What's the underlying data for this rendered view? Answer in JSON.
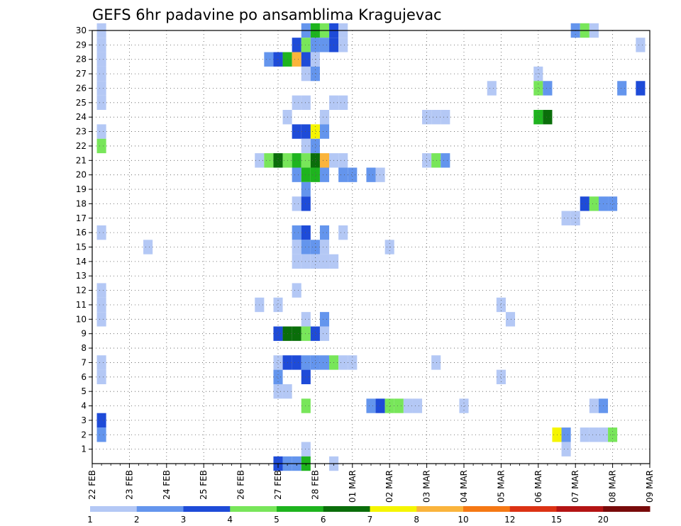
{
  "chart_data": {
    "type": "heatmap",
    "title": "GEFS 6hr padavine po ansamblima Kragujevac",
    "xlabel": "",
    "ylabel": "",
    "x_range": [
      "22 FEB 00Z",
      "09 MAR 00Z"
    ],
    "x_step_hours": 6,
    "x_ticks": [
      "22 FEB",
      "23 FEB",
      "24 FEB",
      "25 FEB",
      "26 FEB",
      "27 FEB",
      "28 FEB",
      "01 MAR",
      "02 MAR",
      "03 MAR",
      "04 MAR",
      "05 MAR",
      "06 MAR",
      "07 MAR",
      "08 MAR",
      "09 MAR"
    ],
    "y_ticks": [
      1,
      2,
      3,
      4,
      5,
      6,
      7,
      8,
      9,
      10,
      11,
      12,
      13,
      14,
      15,
      16,
      17,
      18,
      19,
      20,
      21,
      22,
      23,
      24,
      25,
      26,
      27,
      28,
      29,
      30
    ],
    "y_range": [
      0,
      30
    ],
    "grid": true,
    "colorbar": {
      "bounds": [
        1,
        2,
        3,
        4,
        5,
        6,
        7,
        8,
        10,
        12,
        15,
        20
      ],
      "labels": [
        "1",
        "2",
        "3",
        "4",
        "5",
        "6",
        "7",
        "8",
        "10",
        "12",
        "15",
        "20"
      ],
      "colors": [
        "#b4c8f5",
        "#6495ed",
        "#1e4bd8",
        "#78e65a",
        "#1eb41e",
        "#0a6e0a",
        "#f5f500",
        "#fab43c",
        "#f57814",
        "#dc3214",
        "#b41414",
        "#780a0a"
      ]
    },
    "cells": [
      {
        "m": 30,
        "t": "22 FEB 06Z",
        "v": 1
      },
      {
        "m": 29,
        "t": "22 FEB 06Z",
        "v": 1
      },
      {
        "m": 28,
        "t": "22 FEB 06Z",
        "v": 1
      },
      {
        "m": 27,
        "t": "22 FEB 06Z",
        "v": 1
      },
      {
        "m": 26,
        "t": "22 FEB 06Z",
        "v": 1
      },
      {
        "m": 25,
        "t": "22 FEB 06Z",
        "v": 1
      },
      {
        "m": 23,
        "t": "22 FEB 06Z",
        "v": 1
      },
      {
        "m": 22,
        "t": "22 FEB 06Z",
        "v": 4
      },
      {
        "m": 16,
        "t": "22 FEB 06Z",
        "v": 1
      },
      {
        "m": 12,
        "t": "22 FEB 06Z",
        "v": 1
      },
      {
        "m": 11,
        "t": "22 FEB 06Z",
        "v": 1
      },
      {
        "m": 10,
        "t": "22 FEB 06Z",
        "v": 1
      },
      {
        "m": 7,
        "t": "22 FEB 06Z",
        "v": 1
      },
      {
        "m": 6,
        "t": "22 FEB 06Z",
        "v": 1
      },
      {
        "m": 3,
        "t": "22 FEB 06Z",
        "v": 3
      },
      {
        "m": 2,
        "t": "22 FEB 06Z",
        "v": 2
      },
      {
        "m": 15,
        "t": "23 FEB 12Z",
        "v": 1
      },
      {
        "m": 21,
        "t": "26 FEB 12Z",
        "v": 1
      },
      {
        "m": 11,
        "t": "26 FEB 12Z",
        "v": 1
      },
      {
        "m": 28,
        "t": "26 FEB 18Z",
        "v": 2
      },
      {
        "m": 21,
        "t": "26 FEB 18Z",
        "v": 4
      },
      {
        "m": 28,
        "t": "27 FEB 00Z",
        "v": 3
      },
      {
        "m": 21,
        "t": "27 FEB 00Z",
        "v": 6
      },
      {
        "m": 11,
        "t": "27 FEB 00Z",
        "v": 1
      },
      {
        "m": 9,
        "t": "27 FEB 00Z",
        "v": 3
      },
      {
        "m": 7,
        "t": "27 FEB 00Z",
        "v": 1
      },
      {
        "m": 6,
        "t": "27 FEB 00Z",
        "v": 2
      },
      {
        "m": 5,
        "t": "27 FEB 00Z",
        "v": 1
      },
      {
        "m": 0,
        "t": "27 FEB 00Z",
        "v": 3
      },
      {
        "m": 28,
        "t": "27 FEB 06Z",
        "v": 5
      },
      {
        "m": 24,
        "t": "27 FEB 06Z",
        "v": 1
      },
      {
        "m": 21,
        "t": "27 FEB 06Z",
        "v": 4
      },
      {
        "m": 9,
        "t": "27 FEB 06Z",
        "v": 6
      },
      {
        "m": 7,
        "t": "27 FEB 06Z",
        "v": 3
      },
      {
        "m": 5,
        "t": "27 FEB 06Z",
        "v": 1
      },
      {
        "m": 0,
        "t": "27 FEB 06Z",
        "v": 2
      },
      {
        "m": 29,
        "t": "27 FEB 12Z",
        "v": 3
      },
      {
        "m": 28,
        "t": "27 FEB 12Z",
        "v": 8
      },
      {
        "m": 25,
        "t": "27 FEB 12Z",
        "v": 1
      },
      {
        "m": 23,
        "t": "27 FEB 12Z",
        "v": 3
      },
      {
        "m": 21,
        "t": "27 FEB 12Z",
        "v": 5
      },
      {
        "m": 20,
        "t": "27 FEB 12Z",
        "v": 2
      },
      {
        "m": 18,
        "t": "27 FEB 12Z",
        "v": 1
      },
      {
        "m": 16,
        "t": "27 FEB 12Z",
        "v": 2
      },
      {
        "m": 15,
        "t": "27 FEB 12Z",
        "v": 1
      },
      {
        "m": 14,
        "t": "27 FEB 12Z",
        "v": 1
      },
      {
        "m": 12,
        "t": "27 FEB 12Z",
        "v": 1
      },
      {
        "m": 9,
        "t": "27 FEB 12Z",
        "v": 6
      },
      {
        "m": 7,
        "t": "27 FEB 12Z",
        "v": 3
      },
      {
        "m": 0,
        "t": "27 FEB 12Z",
        "v": 2
      },
      {
        "m": 30,
        "t": "27 FEB 18Z",
        "v": 2
      },
      {
        "m": 29,
        "t": "27 FEB 18Z",
        "v": 4
      },
      {
        "m": 28,
        "t": "27 FEB 18Z",
        "v": 3
      },
      {
        "m": 27,
        "t": "27 FEB 18Z",
        "v": 1
      },
      {
        "m": 25,
        "t": "27 FEB 18Z",
        "v": 1
      },
      {
        "m": 23,
        "t": "27 FEB 18Z",
        "v": 3
      },
      {
        "m": 22,
        "t": "27 FEB 18Z",
        "v": 1
      },
      {
        "m": 21,
        "t": "27 FEB 18Z",
        "v": 4
      },
      {
        "m": 20,
        "t": "27 FEB 18Z",
        "v": 5
      },
      {
        "m": 19,
        "t": "27 FEB 18Z",
        "v": 2
      },
      {
        "m": 18,
        "t": "27 FEB 18Z",
        "v": 3
      },
      {
        "m": 16,
        "t": "27 FEB 18Z",
        "v": 3
      },
      {
        "m": 15,
        "t": "27 FEB 18Z",
        "v": 2
      },
      {
        "m": 14,
        "t": "27 FEB 18Z",
        "v": 1
      },
      {
        "m": 10,
        "t": "27 FEB 18Z",
        "v": 1
      },
      {
        "m": 9,
        "t": "27 FEB 18Z",
        "v": 4
      },
      {
        "m": 7,
        "t": "27 FEB 18Z",
        "v": 2
      },
      {
        "m": 6,
        "t": "27 FEB 18Z",
        "v": 3
      },
      {
        "m": 4,
        "t": "27 FEB 18Z",
        "v": 4
      },
      {
        "m": 1,
        "t": "27 FEB 18Z",
        "v": 1
      },
      {
        "m": 0,
        "t": "27 FEB 18Z",
        "v": 5
      },
      {
        "m": 30,
        "t": "28 FEB 00Z",
        "v": 5
      },
      {
        "m": 29,
        "t": "28 FEB 00Z",
        "v": 2
      },
      {
        "m": 28,
        "t": "28 FEB 00Z",
        "v": 1
      },
      {
        "m": 27,
        "t": "28 FEB 00Z",
        "v": 2
      },
      {
        "m": 23,
        "t": "28 FEB 00Z",
        "v": 7
      },
      {
        "m": 22,
        "t": "28 FEB 00Z",
        "v": 2
      },
      {
        "m": 21,
        "t": "28 FEB 00Z",
        "v": 6
      },
      {
        "m": 20,
        "t": "28 FEB 00Z",
        "v": 5
      },
      {
        "m": 15,
        "t": "28 FEB 00Z",
        "v": 2
      },
      {
        "m": 14,
        "t": "28 FEB 00Z",
        "v": 1
      },
      {
        "m": 9,
        "t": "28 FEB 00Z",
        "v": 3
      },
      {
        "m": 7,
        "t": "28 FEB 00Z",
        "v": 2
      },
      {
        "m": 30,
        "t": "28 FEB 06Z",
        "v": 4
      },
      {
        "m": 29,
        "t": "28 FEB 06Z",
        "v": 2
      },
      {
        "m": 24,
        "t": "28 FEB 06Z",
        "v": 1
      },
      {
        "m": 23,
        "t": "28 FEB 06Z",
        "v": 2
      },
      {
        "m": 21,
        "t": "28 FEB 06Z",
        "v": 8
      },
      {
        "m": 20,
        "t": "28 FEB 06Z",
        "v": 2
      },
      {
        "m": 16,
        "t": "28 FEB 06Z",
        "v": 2
      },
      {
        "m": 15,
        "t": "28 FEB 06Z",
        "v": 1
      },
      {
        "m": 14,
        "t": "28 FEB 06Z",
        "v": 1
      },
      {
        "m": 10,
        "t": "28 FEB 06Z",
        "v": 2
      },
      {
        "m": 9,
        "t": "28 FEB 06Z",
        "v": 1
      },
      {
        "m": 7,
        "t": "28 FEB 06Z",
        "v": 2
      },
      {
        "m": 30,
        "t": "28 FEB 12Z",
        "v": 3
      },
      {
        "m": 29,
        "t": "28 FEB 12Z",
        "v": 3
      },
      {
        "m": 25,
        "t": "28 FEB 12Z",
        "v": 1
      },
      {
        "m": 21,
        "t": "28 FEB 12Z",
        "v": 1
      },
      {
        "m": 14,
        "t": "28 FEB 12Z",
        "v": 1
      },
      {
        "m": 7,
        "t": "28 FEB 12Z",
        "v": 4
      },
      {
        "m": 0,
        "t": "28 FEB 12Z",
        "v": 1
      },
      {
        "m": 30,
        "t": "28 FEB 18Z",
        "v": 1
      },
      {
        "m": 29,
        "t": "28 FEB 18Z",
        "v": 1
      },
      {
        "m": 25,
        "t": "28 FEB 18Z",
        "v": 1
      },
      {
        "m": 21,
        "t": "28 FEB 18Z",
        "v": 1
      },
      {
        "m": 20,
        "t": "28 FEB 18Z",
        "v": 2
      },
      {
        "m": 16,
        "t": "28 FEB 18Z",
        "v": 1
      },
      {
        "m": 7,
        "t": "28 FEB 18Z",
        "v": 1
      },
      {
        "m": 20,
        "t": "01 MAR 00Z",
        "v": 2
      },
      {
        "m": 7,
        "t": "01 MAR 00Z",
        "v": 1
      },
      {
        "m": 20,
        "t": "01 MAR 12Z",
        "v": 2
      },
      {
        "m": 4,
        "t": "01 MAR 12Z",
        "v": 2
      },
      {
        "m": 20,
        "t": "01 MAR 18Z",
        "v": 1
      },
      {
        "m": 4,
        "t": "01 MAR 18Z",
        "v": 3
      },
      {
        "m": 15,
        "t": "02 MAR 00Z",
        "v": 1
      },
      {
        "m": 4,
        "t": "02 MAR 00Z",
        "v": 4
      },
      {
        "m": 4,
        "t": "02 MAR 06Z",
        "v": 4
      },
      {
        "m": 4,
        "t": "02 MAR 12Z",
        "v": 1
      },
      {
        "m": 4,
        "t": "02 MAR 18Z",
        "v": 1
      },
      {
        "m": 24,
        "t": "03 MAR 00Z",
        "v": 1
      },
      {
        "m": 21,
        "t": "03 MAR 00Z",
        "v": 1
      },
      {
        "m": 24,
        "t": "03 MAR 06Z",
        "v": 1
      },
      {
        "m": 21,
        "t": "03 MAR 06Z",
        "v": 4
      },
      {
        "m": 7,
        "t": "03 MAR 06Z",
        "v": 1
      },
      {
        "m": 24,
        "t": "03 MAR 12Z",
        "v": 1
      },
      {
        "m": 21,
        "t": "03 MAR 12Z",
        "v": 2
      },
      {
        "m": 4,
        "t": "04 MAR 00Z",
        "v": 1
      },
      {
        "m": 26,
        "t": "04 MAR 18Z",
        "v": 1
      },
      {
        "m": 11,
        "t": "05 MAR 00Z",
        "v": 1
      },
      {
        "m": 6,
        "t": "05 MAR 00Z",
        "v": 1
      },
      {
        "m": 10,
        "t": "05 MAR 06Z",
        "v": 1
      },
      {
        "m": 27,
        "t": "06 MAR 00Z",
        "v": 1
      },
      {
        "m": 26,
        "t": "06 MAR 00Z",
        "v": 4
      },
      {
        "m": 24,
        "t": "06 MAR 00Z",
        "v": 5
      },
      {
        "m": 26,
        "t": "06 MAR 06Z",
        "v": 2
      },
      {
        "m": 24,
        "t": "06 MAR 06Z",
        "v": 6
      },
      {
        "m": 2,
        "t": "06 MAR 12Z",
        "v": 7
      },
      {
        "m": 2,
        "t": "06 MAR 18Z",
        "v": 2
      },
      {
        "m": 1,
        "t": "06 MAR 18Z",
        "v": 1
      },
      {
        "m": 17,
        "t": "06 MAR 18Z",
        "v": 1
      },
      {
        "m": 30,
        "t": "07 MAR 00Z",
        "v": 2
      },
      {
        "m": 17,
        "t": "07 MAR 00Z",
        "v": 1
      },
      {
        "m": 30,
        "t": "07 MAR 06Z",
        "v": 4
      },
      {
        "m": 18,
        "t": "07 MAR 06Z",
        "v": 3
      },
      {
        "m": 2,
        "t": "07 MAR 06Z",
        "v": 1
      },
      {
        "m": 30,
        "t": "07 MAR 12Z",
        "v": 1
      },
      {
        "m": 18,
        "t": "07 MAR 12Z",
        "v": 4
      },
      {
        "m": 4,
        "t": "07 MAR 12Z",
        "v": 1
      },
      {
        "m": 2,
        "t": "07 MAR 12Z",
        "v": 1
      },
      {
        "m": 18,
        "t": "07 MAR 18Z",
        "v": 2
      },
      {
        "m": 4,
        "t": "07 MAR 18Z",
        "v": 2
      },
      {
        "m": 2,
        "t": "07 MAR 18Z",
        "v": 1
      },
      {
        "m": 18,
        "t": "08 MAR 00Z",
        "v": 2
      },
      {
        "m": 2,
        "t": "08 MAR 00Z",
        "v": 4
      },
      {
        "m": 26,
        "t": "08 MAR 06Z",
        "v": 2
      },
      {
        "m": 29,
        "t": "08 MAR 18Z",
        "v": 1
      },
      {
        "m": 26,
        "t": "08 MAR 18Z",
        "v": 3
      }
    ]
  }
}
